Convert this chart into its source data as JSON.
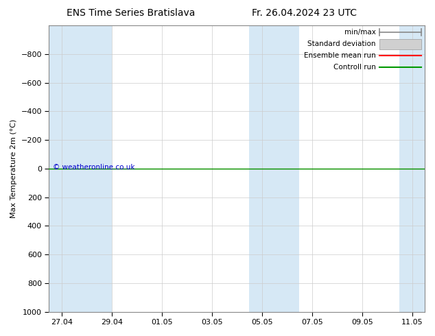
{
  "title_left": "ENS Time Series Bratislava",
  "title_right": "Fr. 26.04.2024 23 UTC",
  "ylabel": "Max Temperature 2m (°C)",
  "ylim_top": -1000,
  "ylim_bottom": 1000,
  "yticks": [
    -800,
    -600,
    -400,
    -200,
    0,
    200,
    400,
    600,
    800,
    1000
  ],
  "xtick_labels": [
    "27.04",
    "29.04",
    "01.05",
    "03.05",
    "05.05",
    "07.05",
    "09.05",
    "11.05"
  ],
  "xtick_positions": [
    0,
    2,
    4,
    6,
    8,
    10,
    12,
    14
  ],
  "shaded_ranges": [
    [
      -0.5,
      2.0
    ],
    [
      7.5,
      9.5
    ],
    [
      13.5,
      14.5
    ]
  ],
  "shaded_color": "#d6e8f5",
  "background_color": "#ffffff",
  "plot_bg_color": "#ffffff",
  "green_line_y": 0,
  "green_line_color": "#009900",
  "red_line_color": "#ff0000",
  "copyright_text": "© weatheronline.co.uk",
  "copyright_color": "#0000cc",
  "legend_labels": [
    "min/max",
    "Standard deviation",
    "Ensemble mean run",
    "Controll run"
  ],
  "title_fontsize": 10,
  "tick_fontsize": 8,
  "ylabel_fontsize": 8,
  "legend_fontsize": 7.5
}
